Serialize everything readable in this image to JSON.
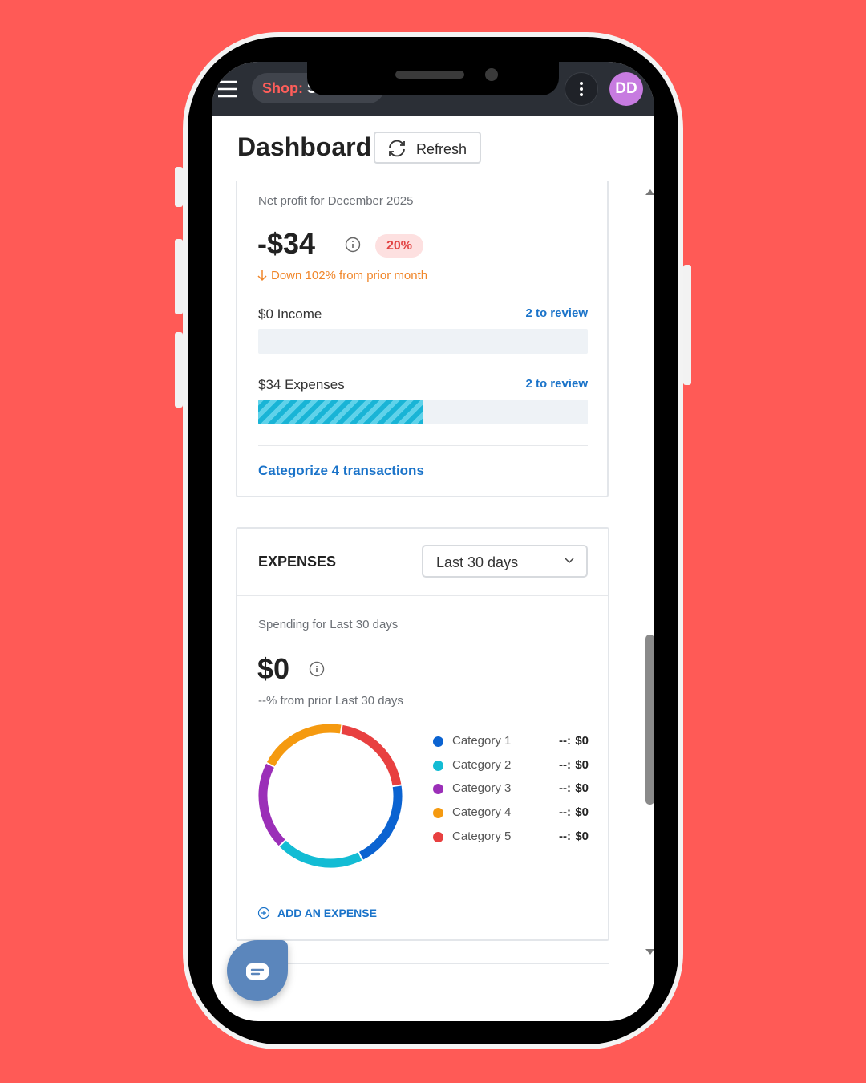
{
  "top_bar": {
    "shop_label": "Shop:",
    "shop_name": "S",
    "avatar": "DD"
  },
  "header": {
    "title": "Dashboard",
    "refresh_button": "Refresh"
  },
  "profit_card": {
    "subtitle": "Net profit for December 2025",
    "amount": "-$34",
    "badge": "20%",
    "change": "Down 102% from prior month",
    "income": {
      "label": "$0 Income",
      "review": "2 to review"
    },
    "expenses": {
      "label": "$34 Expenses",
      "review": "2 to review"
    },
    "action": "Categorize 4 transactions"
  },
  "expenses_card": {
    "title": "EXPENSES",
    "range_select": "Last 30 days",
    "subtitle": "Spending for Last 30 days",
    "amount": "$0",
    "change": "--% from prior Last 30 days",
    "legend": [
      {
        "name": "Category 1",
        "color": "#0b63d1",
        "percent": "--:",
        "amount": "$0"
      },
      {
        "name": "Category 2",
        "color": "#13bcd4",
        "percent": "--:",
        "amount": "$0"
      },
      {
        "name": "Category 3",
        "color": "#9b2fb8",
        "percent": "--:",
        "amount": "$0"
      },
      {
        "name": "Category 4",
        "color": "#f59a10",
        "percent": "--:",
        "amount": "$0"
      },
      {
        "name": "Category 5",
        "color": "#e84040",
        "percent": "--:",
        "amount": "$0"
      }
    ],
    "action": "ADD AN EXPENSE"
  }
}
